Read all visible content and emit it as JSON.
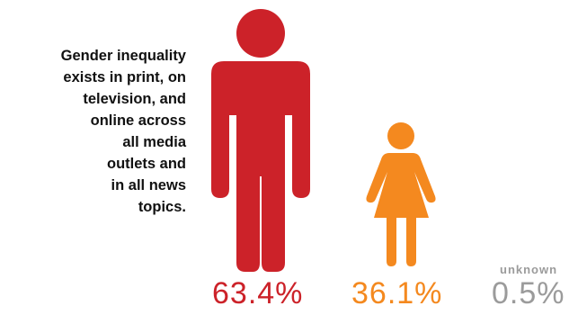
{
  "caption": {
    "lines": [
      "Gender inequality",
      "exists in print, on",
      "television, and",
      "online across",
      "all media",
      "outlets and",
      "in all news",
      "topics."
    ]
  },
  "chart_data": {
    "type": "pictogram",
    "categories": [
      "men",
      "women",
      "unknown"
    ],
    "values": [
      63.4,
      36.1,
      0.5
    ],
    "value_labels": [
      "63.4%",
      "36.1%",
      "0.5%"
    ],
    "category_labels_visible": [
      "",
      "",
      "unknown"
    ],
    "colors": [
      "#cc2229",
      "#f4891f",
      "#9b9b9b"
    ],
    "icons": [
      "man-icon",
      "woman-icon",
      ""
    ]
  }
}
